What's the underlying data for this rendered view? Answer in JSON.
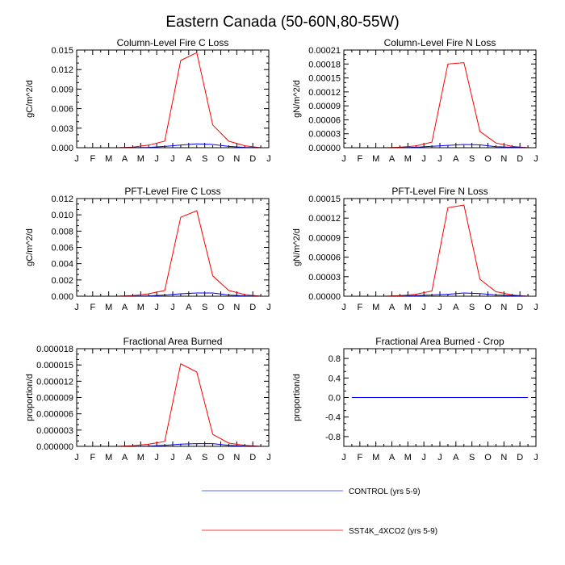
{
  "figure_title": "Eastern Canada (50-60N,80-55W)",
  "months": [
    "J",
    "F",
    "M",
    "A",
    "M",
    "J",
    "J",
    "A",
    "S",
    "O",
    "N",
    "D",
    "J"
  ],
  "series_colors": {
    "CONTROL": "#0000ff",
    "SST4K": "#ff0000"
  },
  "legend": [
    {
      "label": "CONTROL (yrs 5-9)",
      "color": "#5b6bff"
    },
    {
      "label": "SST4K_4XCO2 (yrs 5-9)",
      "color": "#ff3b3b"
    }
  ],
  "chart_data": [
    {
      "type": "line",
      "title": "Column-Level Fire C Loss",
      "ylabel": "gC/m^2/d",
      "ylim": [
        0,
        0.015
      ],
      "yticks": [
        "0.000",
        "0.003",
        "0.006",
        "0.009",
        "0.012",
        "0.015"
      ],
      "x": [
        1,
        2,
        3,
        4,
        5,
        6,
        7,
        8,
        9,
        10,
        11,
        12
      ],
      "series": [
        {
          "name": "CONTROL (yrs 5-9)",
          "values": [
            0,
            0,
            0,
            1e-05,
            5e-05,
            0.0002,
            0.0004,
            0.0006,
            0.0005,
            0.0002,
            5e-05,
            0
          ]
        },
        {
          "name": "SST4K_4XCO2 (yrs 5-9)",
          "values": [
            0,
            0,
            0,
            0.0001,
            0.0004,
            0.001,
            0.0134,
            0.0146,
            0.0035,
            0.001,
            0.0003,
            0
          ]
        }
      ]
    },
    {
      "type": "line",
      "title": "Column-Level Fire N Loss",
      "ylabel": "gN/m^2/d",
      "ylim": [
        0,
        0.00021
      ],
      "yticks": [
        "0.00000",
        "0.00003",
        "0.00006",
        "0.00009",
        "0.00012",
        "0.00015",
        "0.00018",
        "0.00021"
      ],
      "x": [
        1,
        2,
        3,
        4,
        5,
        6,
        7,
        8,
        9,
        10,
        11,
        12
      ],
      "series": [
        {
          "name": "CONTROL (yrs 5-9)",
          "values": [
            0,
            0,
            0,
            0,
            1e-06,
            3e-06,
            5e-06,
            7e-06,
            6e-06,
            2e-06,
            1e-06,
            0
          ]
        },
        {
          "name": "SST4K_4XCO2 (yrs 5-9)",
          "values": [
            0,
            0,
            0,
            1e-06,
            4e-06,
            1.2e-05,
            0.00018,
            0.000183,
            3.5e-05,
            1e-05,
            3e-06,
            0
          ]
        }
      ]
    },
    {
      "type": "line",
      "title": "PFT-Level Fire C Loss",
      "ylabel": "gC/m^2/d",
      "ylim": [
        0,
        0.012
      ],
      "yticks": [
        "0.000",
        "0.002",
        "0.004",
        "0.006",
        "0.008",
        "0.010",
        "0.012"
      ],
      "x": [
        1,
        2,
        3,
        4,
        5,
        6,
        7,
        8,
        9,
        10,
        11,
        12
      ],
      "series": [
        {
          "name": "CONTROL (yrs 5-9)",
          "values": [
            0,
            0,
            0,
            1e-05,
            4e-05,
            0.00015,
            0.0003,
            0.0004,
            0.0004,
            0.00015,
            4e-05,
            0
          ]
        },
        {
          "name": "SST4K_4XCO2 (yrs 5-9)",
          "values": [
            0,
            0,
            0,
            8e-05,
            0.0003,
            0.0007,
            0.0097,
            0.0105,
            0.0025,
            0.0007,
            0.0002,
            0
          ]
        }
      ]
    },
    {
      "type": "line",
      "title": "PFT-Level Fire N Loss",
      "ylabel": "gN/m^2/d",
      "ylim": [
        0,
        0.00015
      ],
      "yticks": [
        "0.00000",
        "0.00003",
        "0.00006",
        "0.00009",
        "0.00012",
        "0.00015"
      ],
      "x": [
        1,
        2,
        3,
        4,
        5,
        6,
        7,
        8,
        9,
        10,
        11,
        12
      ],
      "series": [
        {
          "name": "CONTROL (yrs 5-9)",
          "values": [
            0,
            0,
            0,
            0,
            1e-06,
            2e-06,
            3e-06,
            5e-06,
            4e-06,
            2e-06,
            1e-06,
            0
          ]
        },
        {
          "name": "SST4K_4XCO2 (yrs 5-9)",
          "values": [
            0,
            0,
            0,
            1e-06,
            3e-06,
            8e-06,
            0.000136,
            0.00014,
            2.6e-05,
            7e-06,
            2e-06,
            0
          ]
        }
      ]
    },
    {
      "type": "line",
      "title": "Fractional Area Burned",
      "ylabel": "proportion/d",
      "ylim": [
        0,
        1.8e-05
      ],
      "yticks": [
        "0.000000",
        "0.000003",
        "0.000006",
        "0.000009",
        "0.000012",
        "0.000015",
        "0.000018"
      ],
      "x": [
        1,
        2,
        3,
        4,
        5,
        6,
        7,
        8,
        9,
        10,
        11,
        12
      ],
      "series": [
        {
          "name": "CONTROL (yrs 5-9)",
          "values": [
            0,
            0,
            0,
            0,
            5e-08,
            2e-07,
            4e-07,
            5e-07,
            5e-07,
            2e-07,
            5e-08,
            0
          ]
        },
        {
          "name": "SST4K_4XCO2 (yrs 5-9)",
          "values": [
            0,
            0,
            0,
            1e-07,
            4e-07,
            9e-07,
            1.52e-05,
            1.37e-05,
            2.2e-06,
            6e-07,
            2e-07,
            0
          ]
        }
      ]
    },
    {
      "type": "line",
      "title": "Fractional Area Burned - Crop",
      "ylabel": "proportion/d",
      "ylim": [
        -1,
        1
      ],
      "yticks": [
        "-0.8",
        "-0.4",
        "0.0",
        "0.4",
        "0.8"
      ],
      "ytick_values": [
        -0.8,
        -0.4,
        0,
        0.4,
        0.8
      ],
      "x": [
        1,
        2,
        3,
        4,
        5,
        6,
        7,
        8,
        9,
        10,
        11,
        12
      ],
      "series": [
        {
          "name": "CONTROL (yrs 5-9)",
          "values": [
            0,
            0,
            0,
            0,
            0,
            0,
            0,
            0,
            0,
            0,
            0,
            0
          ]
        },
        {
          "name": "SST4K_4XCO2 (yrs 5-9)",
          "values": [
            0,
            0,
            0,
            0,
            0,
            0,
            0,
            0,
            0,
            0,
            0,
            0
          ]
        }
      ]
    }
  ]
}
